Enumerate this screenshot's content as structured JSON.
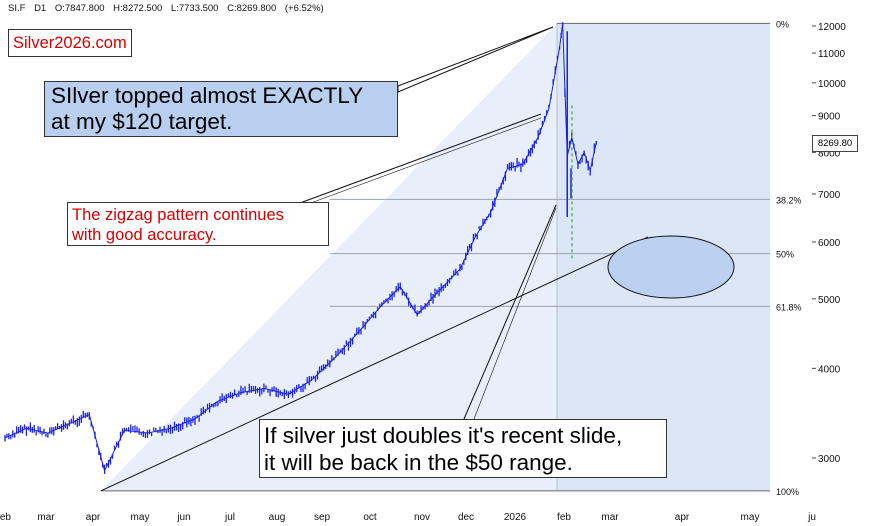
{
  "header": {
    "symbol": "SI.F",
    "interval": "D1",
    "open": "O:7847.800",
    "high": "H:8272.500",
    "low": "L:7733.500",
    "close": "C:8269.800",
    "change": "(+6.52%)"
  },
  "brand": "Silver2026.com",
  "annotations": {
    "topped_line1": "SIlver topped almost EXACTLY",
    "topped_line2": "at my $120 target.",
    "zigzag_line1": "The zigzag pattern continues",
    "zigzag_line2": "with good accuracy.",
    "doubles_line1": "If silver just doubles it's recent slide,",
    "doubles_line2": "it will be back in the $50 range."
  },
  "last_price_label": "8269.80",
  "colors": {
    "candle": "#1a22e0",
    "fib_fill": "#dbe6f7",
    "callout_fill": "#b8cff0",
    "ellipse_fill": "#bcd1f1",
    "brand_text": "#d40000",
    "dashed_line": "#3aa845"
  },
  "chart_data": {
    "type": "line",
    "title": "",
    "xlabel": "",
    "ylabel": "",
    "y_scale": "log",
    "ylim": [
      2600,
      12600
    ],
    "x_ticks": [
      "feb",
      "mar",
      "apr",
      "may",
      "jun",
      "jul",
      "aug",
      "sep",
      "oct",
      "nov",
      "dec",
      "2026",
      "feb",
      "mar",
      "apr",
      "may",
      "ju"
    ],
    "y_ticks": [
      3000,
      4000,
      5000,
      6000,
      7000,
      8000,
      9000,
      10000,
      11000,
      12000
    ],
    "fib_levels": [
      {
        "label": "0%",
        "price": 12100
      },
      {
        "label": "38.2%",
        "price": 6880
      },
      {
        "label": "50%",
        "price": 5780
      },
      {
        "label": "61.8%",
        "price": 4880
      },
      {
        "label": "100%",
        "price": 2700
      }
    ],
    "series": [
      {
        "x": [
          "2025-02-01",
          "2025-02-15",
          "2025-03-01",
          "2025-03-15",
          "2025-03-28",
          "2025-04-07",
          "2025-04-20",
          "2025-05-05",
          "2025-05-20",
          "2025-06-05",
          "2025-06-20",
          "2025-07-05",
          "2025-07-20",
          "2025-08-05",
          "2025-08-20",
          "2025-09-05",
          "2025-09-20",
          "2025-10-05",
          "2025-10-17",
          "2025-10-28",
          "2025-11-10",
          "2025-11-25",
          "2025-12-05",
          "2025-12-15",
          "2025-12-26",
          "2026-01-05",
          "2026-01-15",
          "2026-01-22",
          "2026-01-29",
          "2026-01-31",
          "2026-02-03",
          "2026-02-06",
          "2026-02-10",
          "2026-02-14",
          "2026-02-18",
          "2026-02-22"
        ],
        "values": [
          3200,
          3300,
          3250,
          3350,
          3450,
          2880,
          3280,
          3250,
          3300,
          3400,
          3600,
          3700,
          3750,
          3680,
          3850,
          4150,
          4500,
          4900,
          5200,
          4750,
          5100,
          5500,
          6100,
          6600,
          7600,
          7700,
          8400,
          9200,
          11200,
          12100,
          7900,
          8400,
          7700,
          8000,
          7550,
          8270
        ]
      }
    ],
    "last_price": 8269.8
  }
}
